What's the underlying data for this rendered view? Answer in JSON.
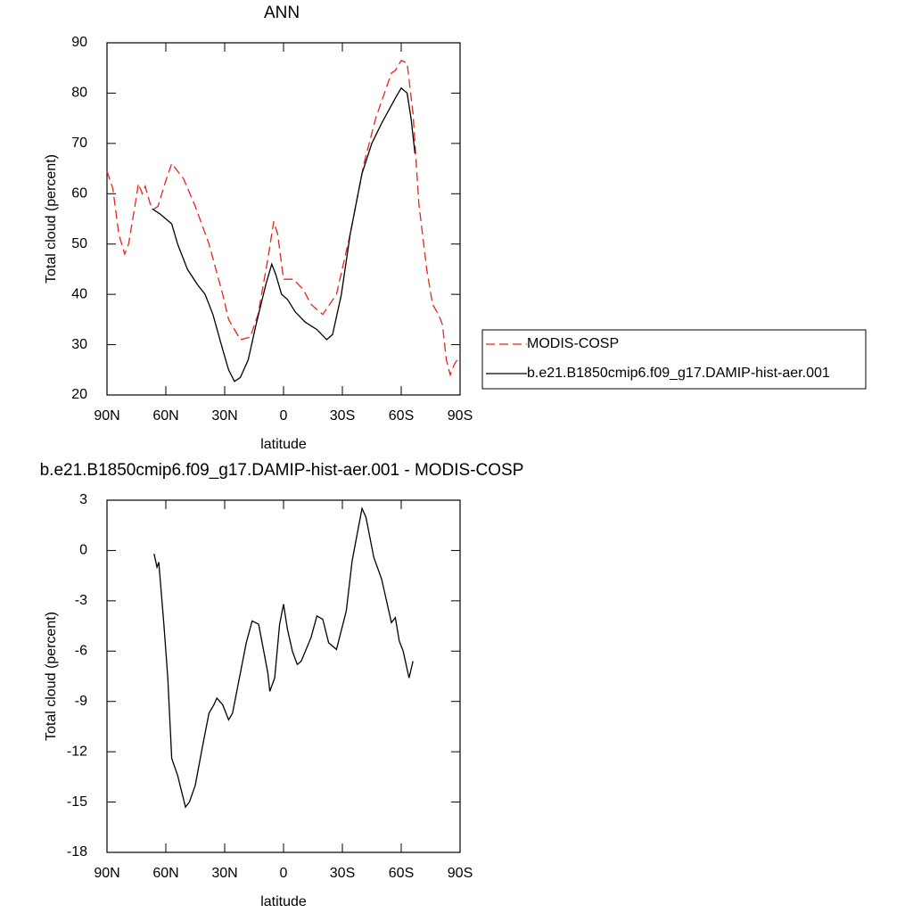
{
  "chart_data": [
    {
      "type": "line",
      "title": "ANN",
      "xlabel": "latitude",
      "ylabel": "Total cloud (percent)",
      "xlim": [
        90,
        -90
      ],
      "ylim": [
        20,
        90
      ],
      "xticks": [
        {
          "value": 90,
          "label": "90N"
        },
        {
          "value": 60,
          "label": "60N"
        },
        {
          "value": 30,
          "label": "30N"
        },
        0,
        {
          "value": -30,
          "label": "30S"
        },
        {
          "value": -60,
          "label": "60S"
        },
        {
          "value": -90,
          "label": "90S"
        }
      ],
      "yticks": [
        20,
        30,
        40,
        50,
        60,
        70,
        80,
        90
      ],
      "legend": "right",
      "series": [
        {
          "name": "MODIS-COSP",
          "color": "#e8241c",
          "dash": true,
          "x": [
            90,
            87,
            84,
            81,
            79,
            76,
            74,
            72,
            70.5,
            68,
            66,
            64,
            60.5,
            57,
            51,
            45,
            38,
            31,
            28,
            22,
            17,
            13,
            8,
            5,
            3,
            0,
            -5,
            -10,
            -14,
            -20,
            -27,
            -34,
            -41,
            -47,
            -55,
            -57,
            -60,
            -63,
            -66,
            -69,
            -73,
            -76,
            -79,
            -81,
            -83,
            -85,
            -87,
            -90
          ],
          "values": [
            64.5,
            61,
            52,
            48,
            50,
            57,
            62,
            60,
            61.5,
            58,
            57,
            57.5,
            62,
            66,
            63,
            57.5,
            50,
            40,
            35,
            31,
            31.5,
            36,
            47,
            54.5,
            52,
            43,
            43,
            41,
            38,
            36,
            40,
            52,
            66,
            75,
            84,
            84.5,
            86.5,
            86,
            76,
            58,
            45,
            38,
            36,
            34,
            27,
            24,
            26,
            28
          ]
        },
        {
          "name": "b.e21.B1850cmip6.f09_g17.DAMIP-hist-aer.001",
          "color": "#000000",
          "dash": false,
          "x": [
            67,
            63,
            57,
            54,
            49,
            44,
            40,
            36,
            31,
            28,
            25,
            22,
            18,
            14,
            9,
            6,
            4,
            1,
            -2,
            -6,
            -11,
            -17,
            -22,
            -25,
            -29.5,
            -34,
            -40,
            -45,
            -50,
            -57,
            -60,
            -63,
            -65,
            -67
          ],
          "values": [
            57,
            56,
            54,
            50,
            45,
            42,
            40,
            36,
            29,
            25,
            22.7,
            23.5,
            27,
            34,
            42,
            46,
            44,
            40,
            39,
            36.5,
            34.5,
            33,
            31,
            32,
            40,
            52,
            64,
            70,
            74,
            79,
            81,
            80,
            75,
            68
          ]
        }
      ]
    },
    {
      "type": "line",
      "title": "b.e21.B1850cmip6.f09_g17.DAMIP-hist-aer.001 - MODIS-COSP",
      "xlabel": "latitude",
      "ylabel": "Total cloud (percent)",
      "xlim": [
        90,
        -90
      ],
      "ylim": [
        -18,
        3
      ],
      "xticks": [
        {
          "value": 90,
          "label": "90N"
        },
        {
          "value": 60,
          "label": "60N"
        },
        {
          "value": 30,
          "label": "30N"
        },
        0,
        {
          "value": -30,
          "label": "30S"
        },
        {
          "value": -60,
          "label": "60S"
        },
        {
          "value": -90,
          "label": "90S"
        }
      ],
      "yticks": [
        -18,
        -15,
        -12,
        -9,
        -6,
        -3,
        0,
        3
      ],
      "series": [
        {
          "color": "#000000",
          "dash": false,
          "x": [
            66,
            64.5,
            63.6,
            61,
            59,
            57,
            54,
            50,
            48,
            45,
            41.5,
            38,
            35.5,
            34,
            31,
            28,
            26,
            22,
            19,
            16,
            12.7,
            8,
            7,
            4.5,
            2,
            0,
            -2,
            -4.5,
            -7,
            -9,
            -14,
            -17,
            -20,
            -23,
            -27,
            -32,
            -35,
            -40,
            -42,
            -46,
            -50,
            -55,
            -57,
            -59,
            -61,
            -64,
            -66
          ],
          "values": [
            -0.2,
            -1.0,
            -0.7,
            -4.4,
            -7.6,
            -12.4,
            -13.4,
            -15.3,
            -15.0,
            -14.0,
            -11.8,
            -9.7,
            -9.2,
            -8.8,
            -9.2,
            -10.1,
            -9.7,
            -7.3,
            -5.5,
            -4.2,
            -4.4,
            -7.3,
            -8.4,
            -7.6,
            -4.4,
            -3.2,
            -4.7,
            -6.0,
            -6.8,
            -6.6,
            -5.2,
            -3.9,
            -4.1,
            -5.5,
            -5.9,
            -3.6,
            -0.6,
            2.5,
            2.0,
            -0.4,
            -1.7,
            -4.3,
            -4.0,
            -5.4,
            -6.0,
            -7.6,
            -6.6
          ]
        }
      ]
    }
  ]
}
